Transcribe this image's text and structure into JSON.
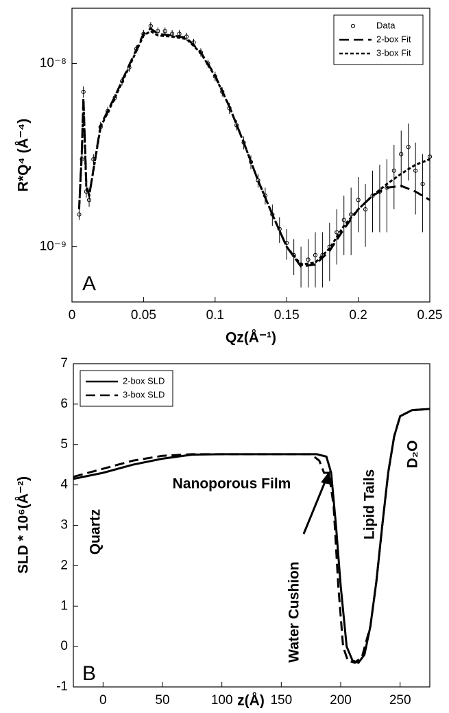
{
  "chart_data": [
    {
      "type": "scatter",
      "panel_label": "A",
      "ylabel": "R*Q⁴ (Å⁻⁴)",
      "xlabel": "Qz(Å⁻¹)",
      "xlim": [
        0,
        0.25
      ],
      "xticks": [
        0,
        0.05,
        0.1,
        0.15,
        0.2,
        0.25
      ],
      "ylim": [
        5e-10,
        2e-08
      ],
      "ylog": true,
      "yticks": [
        {
          "value": 1e-09,
          "label": "10⁻⁹"
        },
        {
          "value": 1e-08,
          "label": "10⁻⁸"
        }
      ],
      "legend": "upper right",
      "series": [
        {
          "name": "Data",
          "color": "#000000",
          "marker": "circle",
          "x": [
            0.005,
            0.007,
            0.008,
            0.01,
            0.012,
            0.015,
            0.02,
            0.025,
            0.03,
            0.035,
            0.04,
            0.045,
            0.05,
            0.055,
            0.06,
            0.065,
            0.07,
            0.075,
            0.08,
            0.085,
            0.09,
            0.095,
            0.1,
            0.105,
            0.11,
            0.115,
            0.12,
            0.125,
            0.13,
            0.135,
            0.14,
            0.145,
            0.15,
            0.155,
            0.16,
            0.165,
            0.17,
            0.175,
            0.18,
            0.185,
            0.19,
            0.195,
            0.2,
            0.205,
            0.21,
            0.215,
            0.22,
            0.225,
            0.23,
            0.235,
            0.24,
            0.245,
            0.25
          ],
          "values": [
            1.5e-09,
            3e-09,
            7e-09,
            2e-09,
            1.8e-09,
            3e-09,
            4.5e-09,
            5.5e-09,
            6.5e-09,
            8e-09,
            9.5e-09,
            1.2e-08,
            1.45e-08,
            1.6e-08,
            1.5e-08,
            1.5e-08,
            1.45e-08,
            1.45e-08,
            1.4e-08,
            1.3e-08,
            1.15e-08,
            1e-08,
            8.5e-09,
            7e-09,
            5.7e-09,
            4.6e-09,
            3.7e-09,
            2.9e-09,
            2.3e-09,
            1.9e-09,
            1.5e-09,
            1.25e-09,
            1.05e-09,
            9e-10,
            8e-10,
            8.5e-10,
            9e-10,
            9e-10,
            1e-09,
            1.2e-09,
            1.4e-09,
            1.5e-09,
            1.8e-09,
            1.6e-09,
            1.9e-09,
            2e-09,
            2.1e-09,
            2.6e-09,
            3.2e-09,
            3.5e-09,
            2.6e-09,
            2.2e-09,
            3.1e-09
          ],
          "errors": [
            1e-10,
            2e-10,
            5e-10,
            1.5e-10,
            1.5e-10,
            2e-10,
            3e-10,
            3e-10,
            3e-10,
            4e-10,
            5e-10,
            6e-10,
            7e-10,
            8e-10,
            7e-10,
            7e-10,
            7e-10,
            7e-10,
            7e-10,
            6e-10,
            6e-10,
            5e-10,
            5e-10,
            4e-10,
            4e-10,
            3e-10,
            3e-10,
            2.5e-10,
            2e-10,
            2e-10,
            2e-10,
            2e-10,
            2e-10,
            2e-10,
            2e-10,
            2.5e-10,
            3e-10,
            3e-10,
            3.5e-10,
            4e-10,
            5e-10,
            6e-10,
            6e-10,
            6e-10,
            7e-10,
            8e-10,
            9e-10,
            1e-09,
            1.1e-09,
            1.2e-09,
            1.1e-09,
            1e-09,
            1.2e-09
          ]
        },
        {
          "name": "2-box Fit",
          "color": "#000000",
          "dash": "dashed",
          "x": [
            0.005,
            0.007,
            0.008,
            0.01,
            0.012,
            0.02,
            0.03,
            0.04,
            0.05,
            0.055,
            0.06,
            0.07,
            0.08,
            0.09,
            0.1,
            0.11,
            0.12,
            0.13,
            0.14,
            0.15,
            0.16,
            0.17,
            0.18,
            0.19,
            0.2,
            0.21,
            0.22,
            0.23,
            0.24,
            0.25
          ],
          "values": [
            1.6e-09,
            3.5e-09,
            6.5e-09,
            2.2e-09,
            1.9e-09,
            4.6e-09,
            6.6e-09,
            9.8e-09,
            1.45e-08,
            1.55e-08,
            1.45e-08,
            1.42e-08,
            1.38e-08,
            1.15e-08,
            8.6e-09,
            5.8e-09,
            3.7e-09,
            2.3e-09,
            1.5e-09,
            1e-09,
            7.8e-10,
            8e-10,
            9.5e-10,
            1.25e-09,
            1.6e-09,
            1.9e-09,
            2.1e-09,
            2.15e-09,
            2e-09,
            1.8e-09
          ]
        },
        {
          "name": "3-box Fit",
          "color": "#000000",
          "dash": "dotted",
          "x": [
            0.005,
            0.007,
            0.008,
            0.01,
            0.012,
            0.02,
            0.03,
            0.04,
            0.05,
            0.055,
            0.06,
            0.07,
            0.08,
            0.09,
            0.1,
            0.11,
            0.12,
            0.13,
            0.14,
            0.15,
            0.16,
            0.17,
            0.18,
            0.19,
            0.2,
            0.21,
            0.22,
            0.23,
            0.24,
            0.25
          ],
          "values": [
            1.6e-09,
            3.4e-09,
            6.3e-09,
            2.1e-09,
            1.9e-09,
            4.5e-09,
            6.5e-09,
            9.6e-09,
            1.42e-08,
            1.5e-08,
            1.42e-08,
            1.4e-08,
            1.36e-08,
            1.14e-08,
            8.5e-09,
            5.8e-09,
            3.7e-09,
            2.3e-09,
            1.5e-09,
            1e-09,
            8e-10,
            8.2e-10,
            9.8e-10,
            1.3e-09,
            1.6e-09,
            1.9e-09,
            2.2e-09,
            2.5e-09,
            2.8e-09,
            3e-09
          ]
        }
      ]
    },
    {
      "type": "line",
      "panel_label": "B",
      "ylabel": "SLD * 10⁶(Å⁻²)",
      "xlabel": "z(Å)",
      "xlim": [
        -25,
        275
      ],
      "xticks": [
        0,
        50,
        100,
        150,
        200,
        250
      ],
      "ylim": [
        -1,
        7
      ],
      "yticks": [
        -1,
        0,
        1,
        2,
        3,
        4,
        5,
        6,
        7
      ],
      "legend": "upper left",
      "annotations": [
        "Quartz",
        "Nanoporous Film",
        "Water Cushion",
        "Lipid Tails",
        "D₂O"
      ],
      "series": [
        {
          "name": "2-box SLD",
          "color": "#000000",
          "dash": "solid",
          "x": [
            -25,
            0,
            25,
            50,
            75,
            100,
            150,
            180,
            188,
            192,
            196,
            200,
            205,
            210,
            215,
            220,
            225,
            230,
            235,
            240,
            245,
            250,
            260,
            275
          ],
          "values": [
            4.15,
            4.3,
            4.5,
            4.65,
            4.75,
            4.76,
            4.76,
            4.76,
            4.7,
            4.3,
            3.0,
            1.5,
            0.0,
            -0.35,
            -0.4,
            -0.2,
            0.5,
            1.6,
            3.0,
            4.3,
            5.2,
            5.7,
            5.85,
            5.88
          ]
        },
        {
          "name": "3-box SLD",
          "color": "#000000",
          "dash": "dashed",
          "x": [
            -25,
            0,
            25,
            50,
            75,
            150,
            175,
            182,
            186,
            190,
            194,
            198,
            202,
            206,
            212,
            218,
            225,
            230,
            235,
            240,
            245,
            250,
            260,
            275
          ],
          "values": [
            4.2,
            4.4,
            4.6,
            4.72,
            4.76,
            4.76,
            4.76,
            4.6,
            4.3,
            4.3,
            3.5,
            1.5,
            0.0,
            -0.35,
            -0.4,
            -0.25,
            0.5,
            1.6,
            3.0,
            4.3,
            5.2,
            5.7,
            5.85,
            5.88
          ]
        }
      ]
    }
  ]
}
